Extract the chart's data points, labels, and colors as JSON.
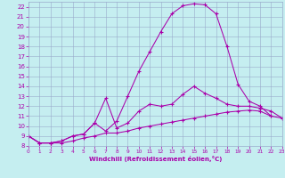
{
  "xlabel": "Windchill (Refroidissement éolien,°C)",
  "xlim": [
    0,
    23
  ],
  "ylim": [
    8,
    22.5
  ],
  "xticks": [
    0,
    1,
    2,
    3,
    4,
    5,
    6,
    7,
    8,
    9,
    10,
    11,
    12,
    13,
    14,
    15,
    16,
    17,
    18,
    19,
    20,
    21,
    22,
    23
  ],
  "yticks": [
    8,
    9,
    10,
    11,
    12,
    13,
    14,
    15,
    16,
    17,
    18,
    19,
    20,
    21,
    22
  ],
  "bg_color": "#c5eef0",
  "grid_color": "#99aacc",
  "line_color": "#aa00aa",
  "line1_x": [
    0,
    1,
    2,
    3,
    4,
    5,
    6,
    7,
    8,
    9,
    10,
    11,
    12,
    13,
    14,
    15,
    16,
    17,
    18,
    19,
    20,
    21,
    22,
    23
  ],
  "line1_y": [
    9.0,
    8.3,
    8.3,
    8.3,
    8.5,
    8.8,
    9.0,
    9.3,
    9.3,
    9.5,
    9.8,
    10.0,
    10.2,
    10.4,
    10.6,
    10.8,
    11.0,
    11.2,
    11.4,
    11.5,
    11.6,
    11.5,
    11.0,
    10.8
  ],
  "line2_x": [
    0,
    1,
    2,
    3,
    4,
    5,
    6,
    7,
    8,
    9,
    10,
    11,
    12,
    13,
    14,
    15,
    16,
    17,
    18,
    19,
    20,
    21,
    22
  ],
  "line2_y": [
    9.0,
    8.3,
    8.3,
    8.5,
    9.0,
    9.2,
    10.3,
    9.5,
    10.5,
    13.0,
    15.5,
    17.5,
    19.5,
    21.3,
    22.1,
    22.3,
    22.2,
    21.3,
    18.0,
    14.2,
    12.5,
    12.0,
    11.0
  ],
  "line3_x": [
    0,
    1,
    2,
    3,
    4,
    5,
    6,
    7,
    8,
    9,
    10,
    11,
    12,
    13,
    14,
    15,
    16,
    17,
    18,
    19,
    20,
    21,
    22,
    23
  ],
  "line3_y": [
    9.0,
    8.3,
    8.3,
    8.5,
    9.0,
    9.2,
    10.3,
    12.8,
    9.8,
    10.3,
    11.5,
    12.2,
    12.0,
    12.2,
    13.2,
    14.0,
    13.3,
    12.8,
    12.2,
    12.0,
    12.0,
    11.8,
    11.5,
    10.8
  ]
}
